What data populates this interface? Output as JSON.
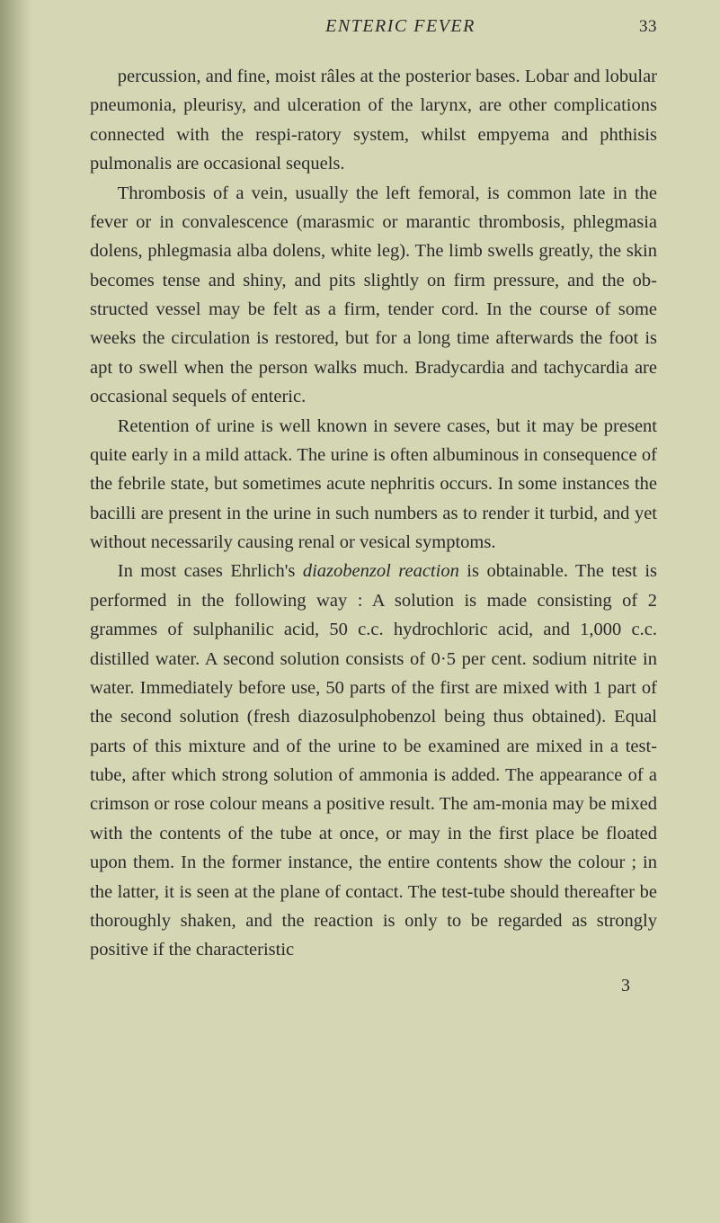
{
  "header": {
    "running_title": "ENTERIC FEVER",
    "page_number": "33"
  },
  "paragraphs": {
    "p1": "percussion, and fine, moist râles at the posterior bases. Lobar and lobular pneumonia, pleurisy, and ulceration of the larynx, are other complications connected with the respi-ratory system, whilst empyema and phthisis pulmonalis are occasional sequels.",
    "p2": "Thrombosis of a vein, usually the left femoral, is common late in the fever or in convalescence (marasmic or marantic thrombosis, phlegmasia dolens, phlegmasia alba dolens, white leg). The limb swells greatly, the skin becomes tense and shiny, and pits slightly on firm pressure, and the ob-structed vessel may be felt as a firm, tender cord. In the course of some weeks the circulation is restored, but for a long time afterwards the foot is apt to swell when the person walks much. Bradycardia and tachycardia are occasional sequels of enteric.",
    "p3": "Retention of urine is well known in severe cases, but it may be present quite early in a mild attack. The urine is often albuminous in consequence of the febrile state, but sometimes acute nephritis occurs. In some instances the bacilli are present in the urine in such numbers as to render it turbid, and yet without necessarily causing renal or vesical symptoms.",
    "p4_before_italic": "In most cases Ehrlich's ",
    "p4_italic": "diazobenzol reaction",
    "p4_after_italic": " is obtainable. The test is performed in the following way : A solution is made consisting of 2 grammes of sulphanilic acid, 50 c.c. hydrochloric acid, and 1,000 c.c. distilled water. A second solution consists of 0·5 per cent. sodium nitrite in water. Immediately before use, 50 parts of the first are mixed with 1 part of the second solution (fresh diazosulphobenzol being thus obtained). Equal parts of this mixture and of the urine to be examined are mixed in a test-tube, after which strong solution of ammonia is added. The appearance of a crimson or rose colour means a positive result. The am-monia may be mixed with the contents of the tube at once, or may in the first place be floated upon them. In the former instance, the entire contents show the colour ; in the latter, it is seen at the plane of contact. The test-tube should thereafter be thoroughly shaken, and the reaction is only to be regarded as strongly positive if the characteristic"
  },
  "signature": "3",
  "colors": {
    "background": "#d4d6b4",
    "text": "#2a2a2a"
  }
}
